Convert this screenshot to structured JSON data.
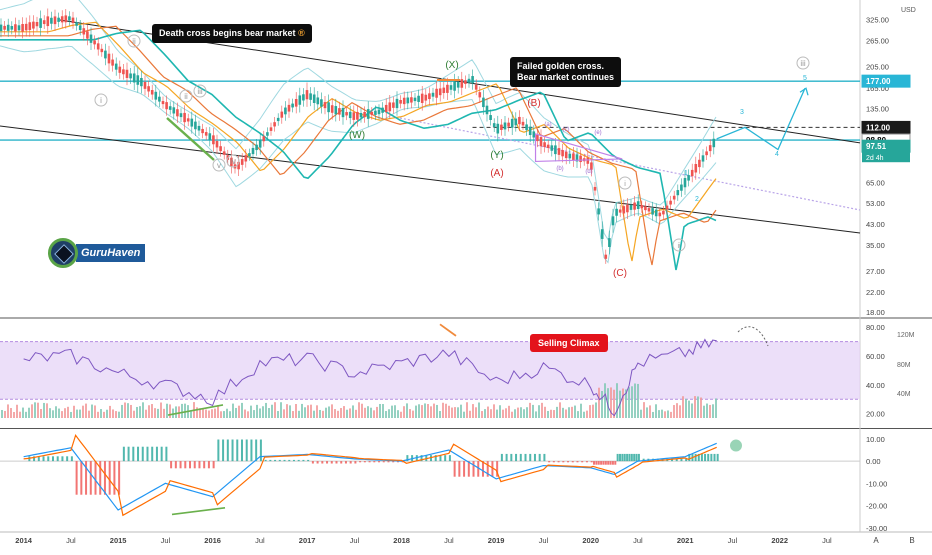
{
  "currency": "USD",
  "chart_data": [
    {
      "type": "line",
      "panel": "price",
      "scale": "log",
      "ylim": [
        17,
        395
      ],
      "y_ticks": [
        "325.00",
        "265.00",
        "205.00",
        "165.00",
        "135.00",
        "98.80",
        "65.00",
        "53.00",
        "43.00",
        "35.00",
        "27.00",
        "22.00",
        "18.00"
      ],
      "price_labels": {
        "level_177": "177.00",
        "level_112": "112.00",
        "level_98": "98.80",
        "last": "97.51",
        "countdown": "2d 4h"
      },
      "x_ticks": [
        "2014",
        "Jul",
        "2015",
        "Jul",
        "2016",
        "Jul",
        "2017",
        "Jul",
        "2018",
        "Jul",
        "2019",
        "Jul",
        "2020",
        "Jul",
        "2021",
        "Jul",
        "2022",
        "Jul"
      ],
      "annotations": {
        "death_cross": "Death cross begins bear market",
        "death_cross_mark": "®",
        "golden_cross_line1": "Failed golden cross.",
        "golden_cross_line2": "Bear market continues",
        "wave_ii_top": "ii",
        "wave_i": "i",
        "wave_ii_mid": "ii",
        "wave_iii_mid": "iii",
        "wave_iv": "iv",
        "wave_v": "v",
        "wave_W": "(W)",
        "wave_X": "(X)",
        "wave_Y": "(Y)",
        "wave_A": "(A)",
        "wave_B": "(B)",
        "wave_C": "(C)",
        "tri_a": "(a)",
        "tri_b": "(b)",
        "tri_c": "(c)",
        "tri_d": "(d)",
        "tri_e": "(e)",
        "wave_i_small": "i",
        "wave_ii_small": "ii",
        "wave_iii_circle": "iii",
        "w1": "1",
        "w2": "2",
        "w3": "3",
        "w4": "4",
        "w5": "5"
      },
      "brand": "GuruHaven",
      "series": [
        {
          "x": [
            "2013-10",
            "2014-01",
            "2014-04",
            "2014-07",
            "2014-10",
            "2015-01",
            "2015-04",
            "2015-07",
            "2015-10",
            "2016-01",
            "2016-04",
            "2016-07",
            "2016-10",
            "2017-01",
            "2017-04",
            "2017-07",
            "2017-10",
            "2018-01",
            "2018-04",
            "2018-07",
            "2018-10",
            "2019-01",
            "2019-04",
            "2019-07",
            "2019-10",
            "2020-01",
            "2020-03",
            "2020-04",
            "2020-07",
            "2020-10",
            "2021-01",
            "2021-03",
            "2021-05"
          ],
          "values": [
            300,
            300,
            320,
            330,
            260,
            200,
            175,
            140,
            120,
            100,
            75,
            95,
            130,
            155,
            135,
            125,
            130,
            145,
            150,
            165,
            180,
            110,
            120,
            95,
            85,
            80,
            30,
            48,
            52,
            47,
            65,
            80,
            100
          ]
        }
      ]
    },
    {
      "type": "line",
      "panel": "rsi_volume",
      "ylim": [
        10,
        85
      ],
      "y_ticks": [
        "80.00",
        "60.00",
        "40.00",
        "20.00"
      ],
      "volume_ticks": [
        "120M",
        "80M",
        "40M"
      ],
      "annotation": "Selling Climax",
      "series": [
        {
          "x": [
            "2014-01",
            "2014-07",
            "2015-01",
            "2015-07",
            "2016-01",
            "2016-07",
            "2017-01",
            "2017-07",
            "2018-01",
            "2018-07",
            "2019-01",
            "2019-07",
            "2020-01",
            "2020-04",
            "2020-07",
            "2021-01",
            "2021-05"
          ],
          "values": [
            58,
            60,
            48,
            40,
            30,
            55,
            58,
            48,
            55,
            62,
            42,
            52,
            40,
            22,
            55,
            62,
            70
          ]
        }
      ]
    },
    {
      "type": "line",
      "panel": "macd",
      "ylim": [
        -31,
        14
      ],
      "y_ticks": [
        "10.00",
        "0.00",
        "-10.00",
        "-20.00",
        "-30.00"
      ],
      "series": [
        {
          "x": [
            "2014-01",
            "2014-07",
            "2015-01",
            "2015-07",
            "2016-01",
            "2016-07",
            "2017-01",
            "2017-07",
            "2018-01",
            "2018-07",
            "2019-01",
            "2019-07",
            "2020-01",
            "2020-04",
            "2020-07",
            "2021-01",
            "2021-05"
          ],
          "values": [
            2,
            6,
            -22,
            -10,
            -16,
            2,
            3,
            1,
            0,
            5,
            -8,
            -2,
            -3,
            -6,
            0,
            2,
            8
          ]
        }
      ]
    }
  ],
  "footer": {
    "btn_a": "A",
    "btn_b": "B"
  }
}
